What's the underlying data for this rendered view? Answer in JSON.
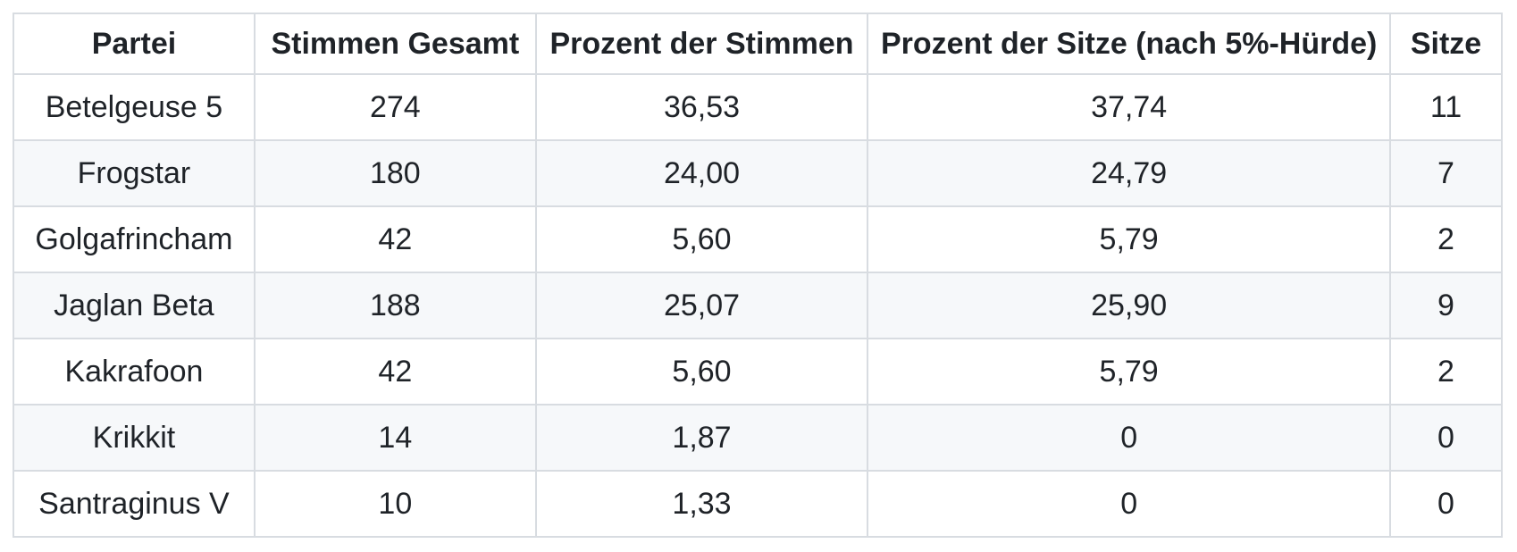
{
  "table": {
    "headers": {
      "partei": "Partei",
      "stimmen_gesamt": "Stimmen Gesamt",
      "prozent_stimmen": "Prozent der Stimmen",
      "prozent_sitze": "Prozent der Sitze (nach 5%-Hürde)",
      "sitze": "Sitze"
    },
    "rows": [
      {
        "partei": "Betelgeuse 5",
        "stimmen_gesamt": "274",
        "prozent_stimmen": "36,53",
        "prozent_sitze": "37,74",
        "sitze": "11"
      },
      {
        "partei": "Frogstar",
        "stimmen_gesamt": "180",
        "prozent_stimmen": "24,00",
        "prozent_sitze": "24,79",
        "sitze": "7"
      },
      {
        "partei": "Golgafrincham",
        "stimmen_gesamt": "42",
        "prozent_stimmen": "5,60",
        "prozent_sitze": "5,79",
        "sitze": "2"
      },
      {
        "partei": "Jaglan Beta",
        "stimmen_gesamt": "188",
        "prozent_stimmen": "25,07",
        "prozent_sitze": "25,90",
        "sitze": "9"
      },
      {
        "partei": "Kakrafoon",
        "stimmen_gesamt": "42",
        "prozent_stimmen": "5,60",
        "prozent_sitze": "5,79",
        "sitze": "2"
      },
      {
        "partei": "Krikkit",
        "stimmen_gesamt": "14",
        "prozent_stimmen": "1,87",
        "prozent_sitze": "0",
        "sitze": "0"
      },
      {
        "partei": "Santraginus V",
        "stimmen_gesamt": "10",
        "prozent_stimmen": "1,33",
        "prozent_sitze": "0",
        "sitze": "0"
      }
    ]
  },
  "colors": {
    "text": "#1f2328",
    "border": "#d8dce1",
    "row_stripe": "#f6f8fa",
    "background": "#ffffff"
  }
}
